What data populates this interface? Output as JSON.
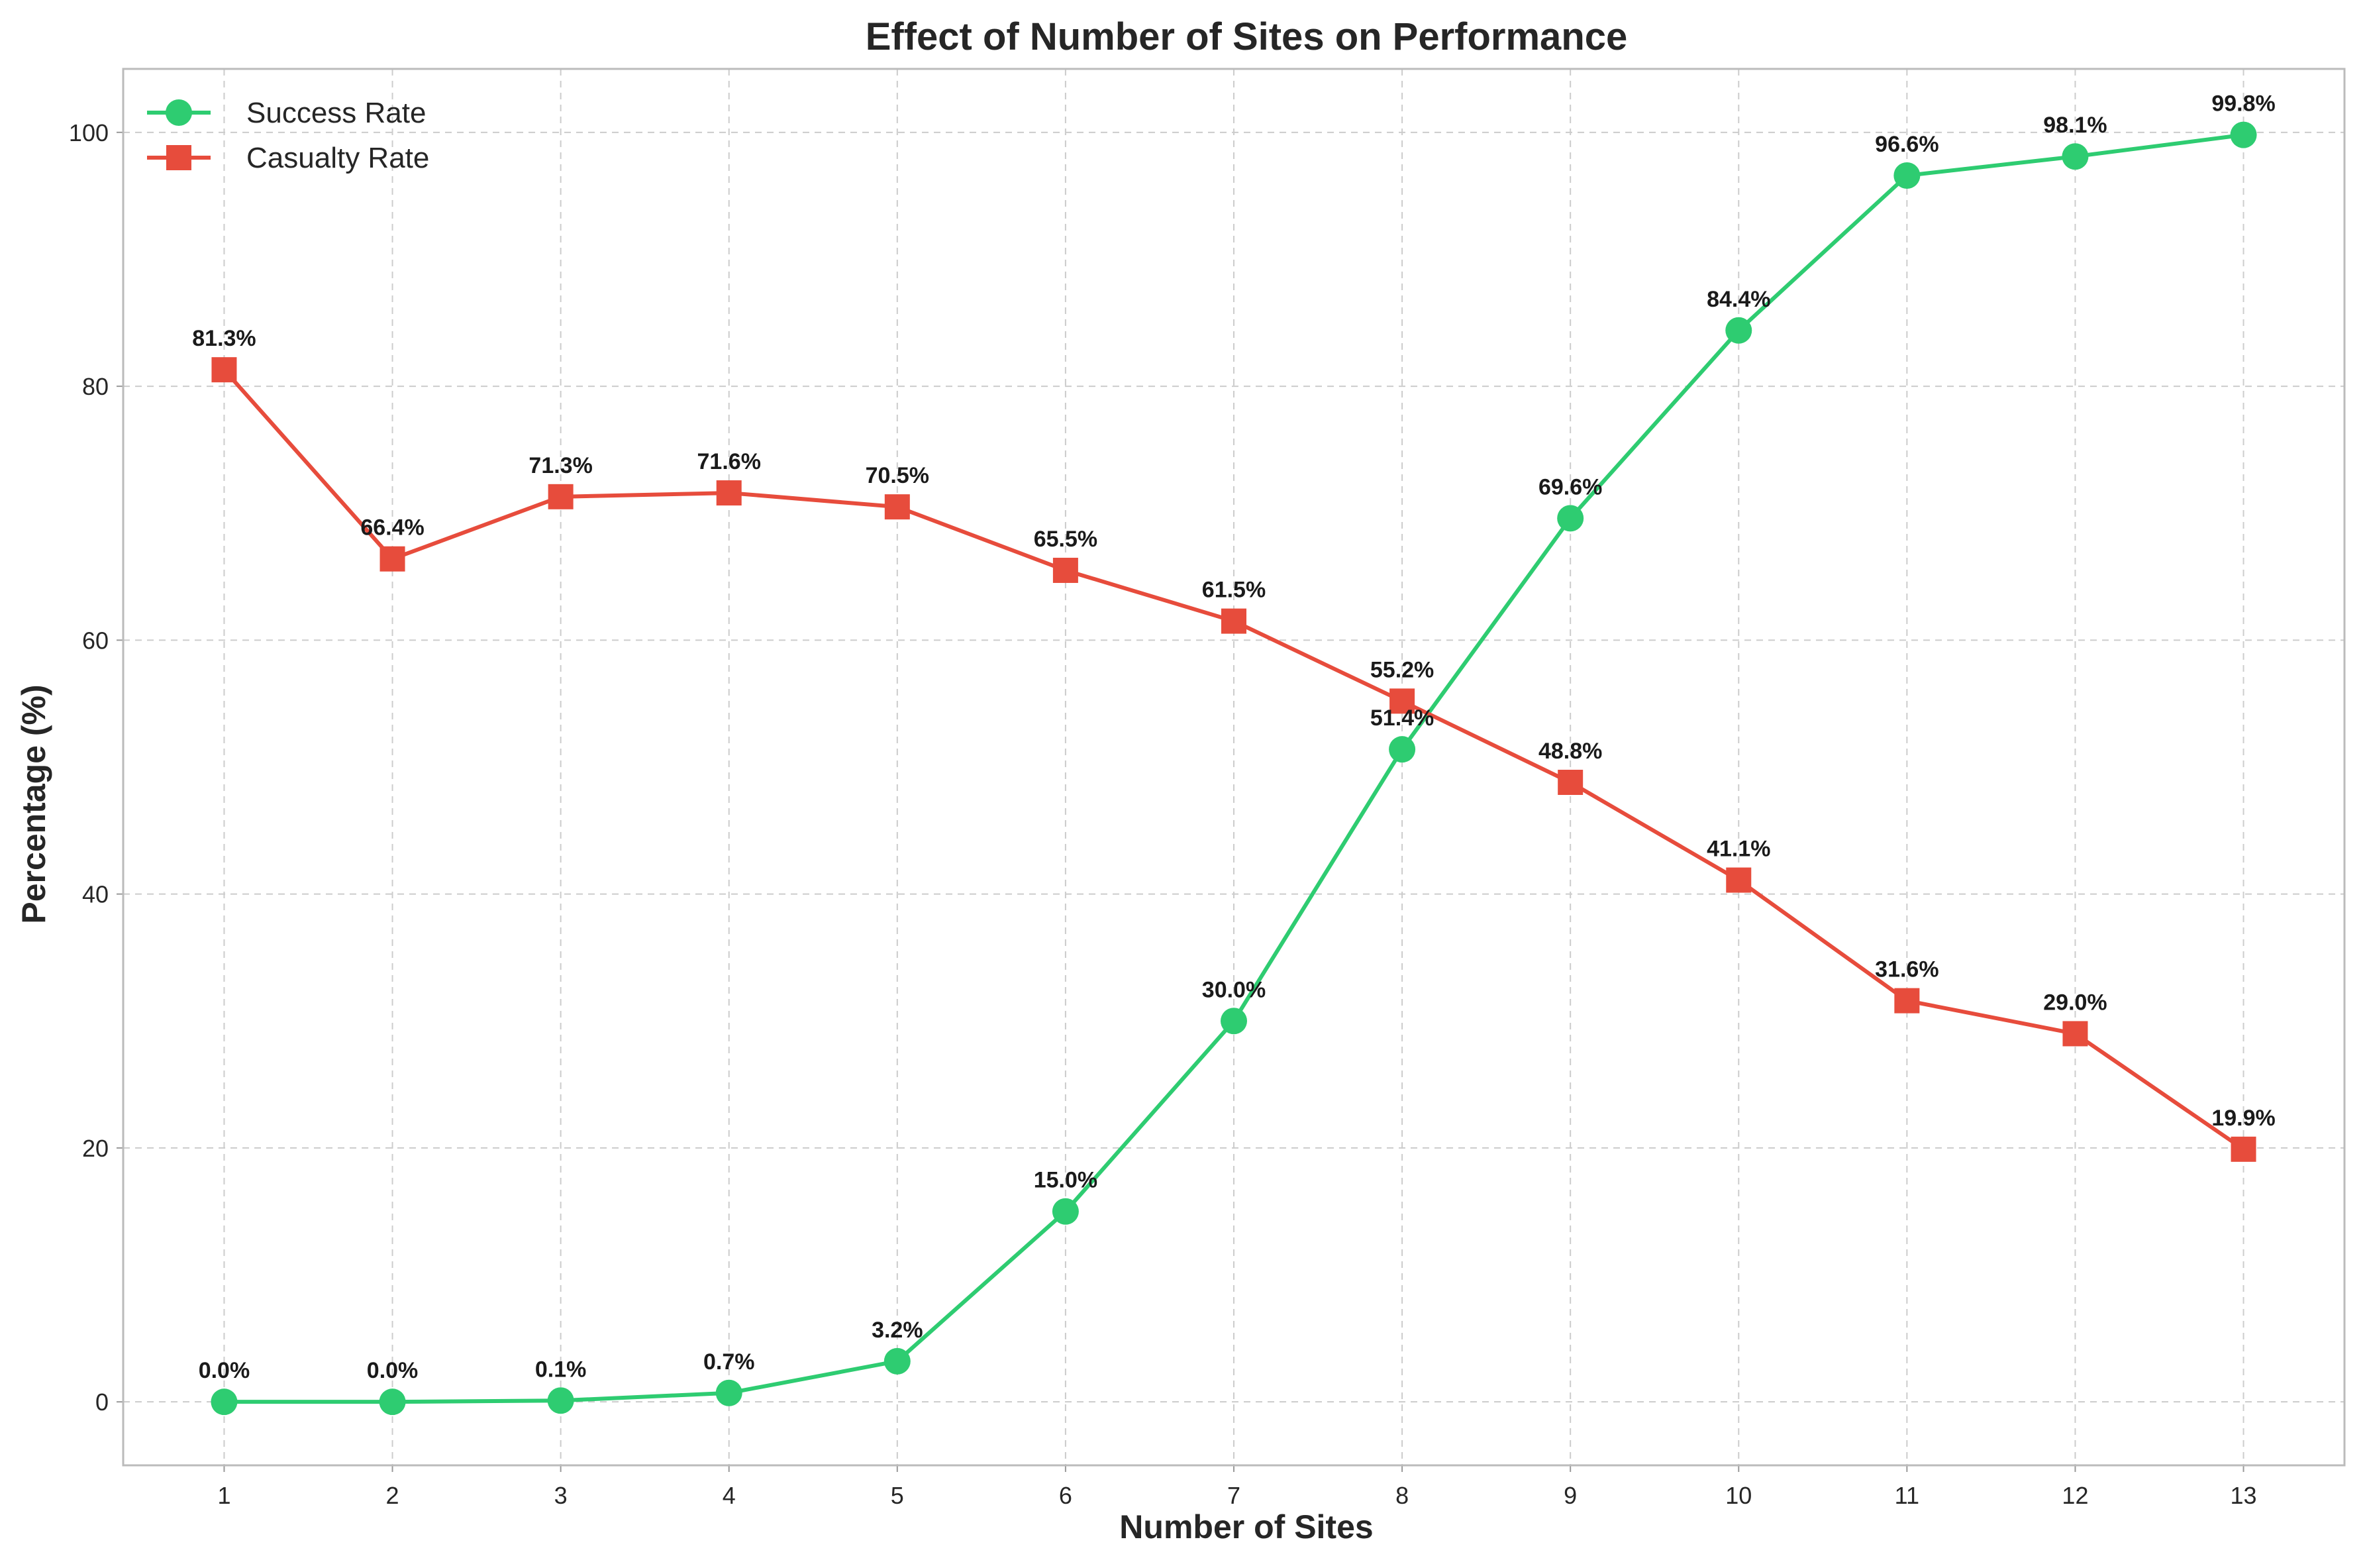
{
  "chart_data": {
    "type": "line",
    "title": "Effect of Number of Sites on Performance",
    "xlabel": "Number of Sites",
    "ylabel": "Percentage (%)",
    "x": [
      1,
      2,
      3,
      4,
      5,
      6,
      7,
      8,
      9,
      10,
      11,
      12,
      13
    ],
    "xlim": [
      0.4,
      13.6
    ],
    "ylim": [
      -5,
      105
    ],
    "yticks": [
      0,
      20,
      40,
      60,
      80,
      100
    ],
    "grid": true,
    "legend_position": "top-left",
    "series": [
      {
        "name": "Success Rate",
        "color": "#2ecc71",
        "marker": "circle",
        "values": [
          0.0,
          0.0,
          0.1,
          0.7,
          3.2,
          15.0,
          30.0,
          51.4,
          69.6,
          84.4,
          96.6,
          98.1,
          99.8
        ],
        "labels": [
          "0.0%",
          "0.0%",
          "0.1%",
          "0.7%",
          "3.2%",
          "15.0%",
          "30.0%",
          "51.4%",
          "69.6%",
          "84.4%",
          "96.6%",
          "98.1%",
          "99.8%"
        ]
      },
      {
        "name": "Casualty Rate",
        "color": "#e74c3c",
        "marker": "square",
        "values": [
          81.3,
          66.4,
          71.3,
          71.6,
          70.5,
          65.5,
          61.5,
          55.2,
          48.8,
          41.1,
          31.6,
          29.0,
          19.9
        ],
        "labels": [
          "81.3%",
          "66.4%",
          "71.3%",
          "71.6%",
          "70.5%",
          "65.5%",
          "61.5%",
          "55.2%",
          "48.8%",
          "41.1%",
          "31.6%",
          "29.0%",
          "19.9%"
        ]
      }
    ]
  }
}
